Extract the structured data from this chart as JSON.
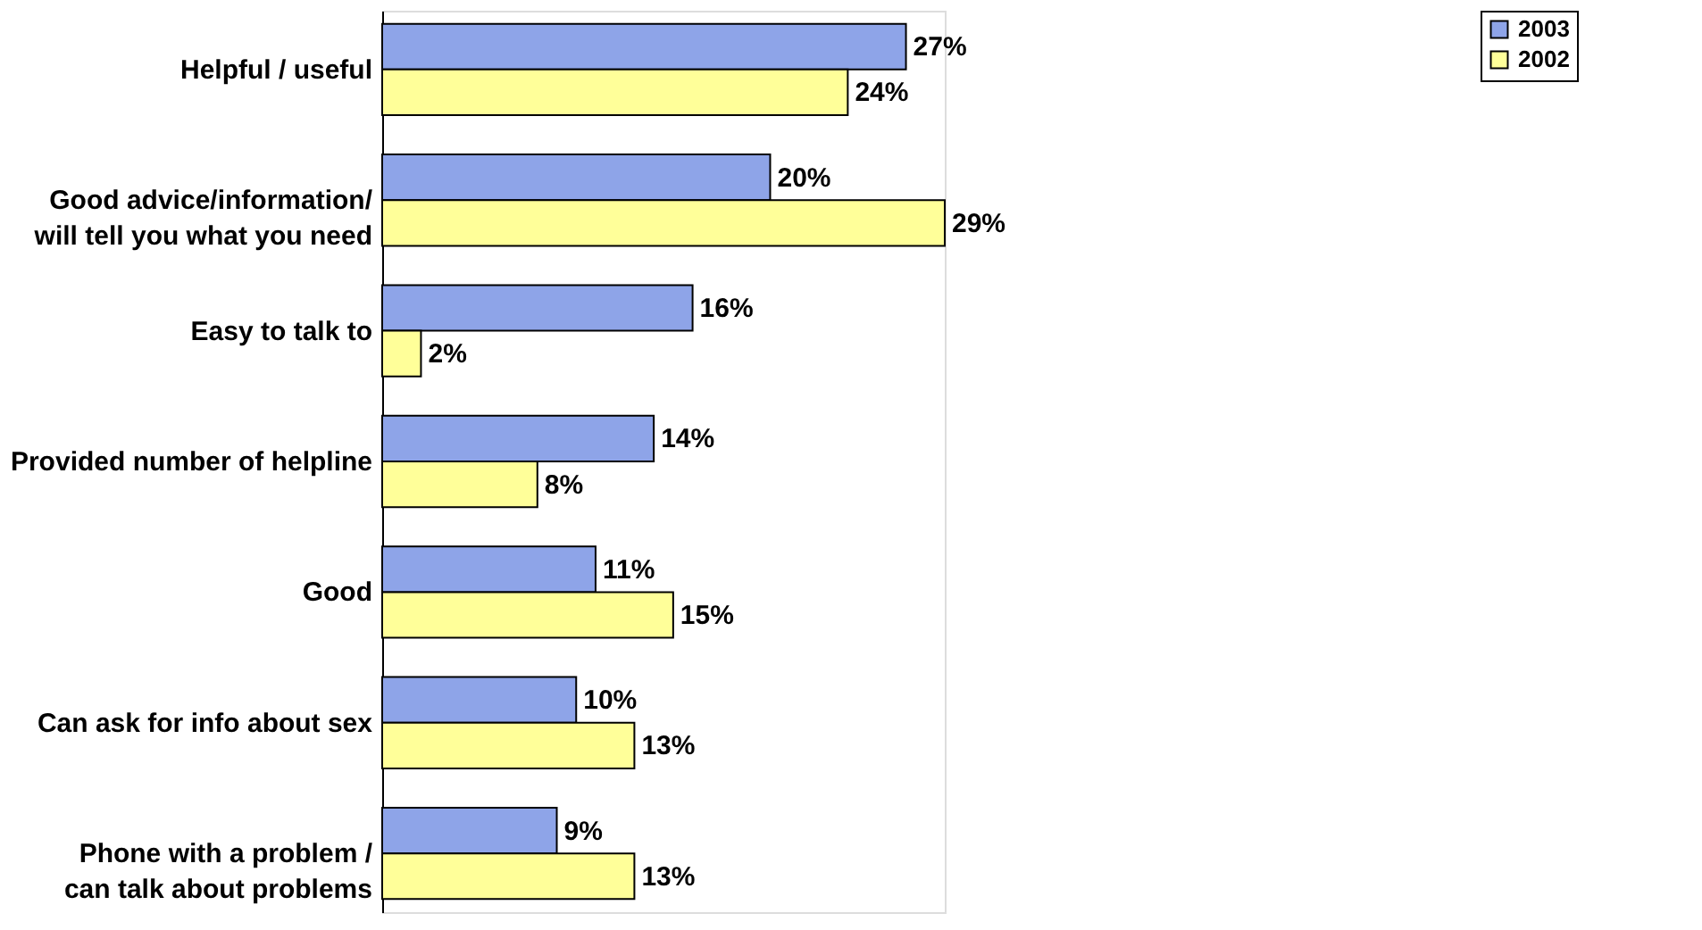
{
  "chart_data": {
    "type": "bar",
    "orientation": "horizontal",
    "legend": "top right",
    "categories": [
      "Helpful / useful",
      "Good advice/information/\nwill tell you what you need",
      "Easy to talk to",
      "Provided number of helpline",
      "Good",
      "Can ask for info about sex",
      "Phone with a problem /\ncan talk about problems"
    ],
    "series": [
      {
        "name": "2003",
        "color": "#8ea4e8",
        "values": [
          27,
          20,
          16,
          14,
          11,
          10,
          9
        ],
        "value_labels": [
          "27%",
          "20%",
          "16%",
          "14%",
          "11%",
          "10%",
          "9%"
        ]
      },
      {
        "name": "2002",
        "color": "#ffff99",
        "values": [
          24,
          29,
          2,
          8,
          15,
          13,
          13
        ],
        "value_labels": [
          "24%",
          "29%",
          "2%",
          "8%",
          "15%",
          "13%",
          "13%"
        ]
      }
    ]
  }
}
